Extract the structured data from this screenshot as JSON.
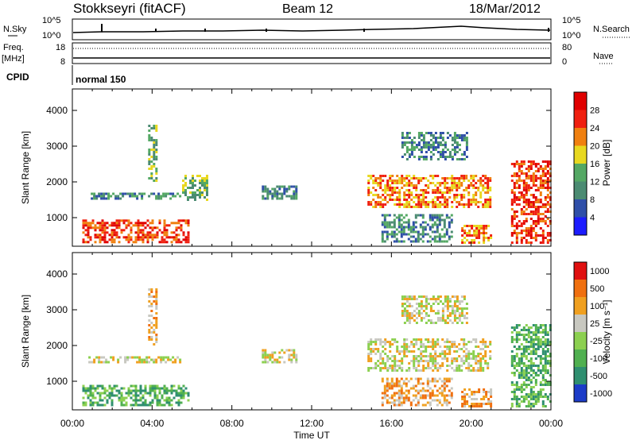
{
  "header": {
    "title": "Stokkseyri (fitACF)",
    "beam": "Beam 12",
    "date": "18/Mar/2012"
  },
  "top_panels": {
    "nsky_label": "N.Sky",
    "nsearch_label": "N.Search",
    "nsky_ticks": [
      "10^5",
      "10^0"
    ],
    "nsearch_ticks": [
      "10^5",
      "10^0"
    ],
    "freq_label": "Freq.",
    "freq_unit": "[MHz]",
    "freq_ticks": [
      "18",
      "8"
    ],
    "nave_label": "Nave",
    "nave_ticks": [
      "80",
      "0"
    ],
    "cpid_label": "CPID",
    "cpid_value": "normal 150"
  },
  "chart_data": [
    {
      "type": "heatmap",
      "name": "power",
      "ylabel": "Slant Range [km]",
      "yticks": [
        "1000",
        "2000",
        "3000",
        "4000"
      ],
      "ylim": [
        200,
        4600
      ],
      "xlim": [
        0,
        24
      ],
      "colorbar": {
        "label": "Power [dB]",
        "ticks": [
          "4",
          "8",
          "12",
          "16",
          "20",
          "24",
          "28"
        ],
        "colors": [
          "#1c1cff",
          "#2f4fa8",
          "#4b8b72",
          "#54a864",
          "#e8d820",
          "#f08010",
          "#f02010",
          "#e00000"
        ]
      },
      "regions": [
        {
          "t0": 0.5,
          "t1": 5.8,
          "r0": 300,
          "r1": 950,
          "level": 6
        },
        {
          "t0": 0.8,
          "t1": 5.4,
          "r0": 1500,
          "r1": 1700,
          "level": 2
        },
        {
          "t0": 3.8,
          "t1": 4.2,
          "r0": 2000,
          "r1": 3600,
          "level": 3
        },
        {
          "t0": 5.5,
          "t1": 6.8,
          "r0": 1500,
          "r1": 2200,
          "level": 3
        },
        {
          "t0": 9.5,
          "t1": 11.2,
          "r0": 1500,
          "r1": 1900,
          "level": 2
        },
        {
          "t0": 14.8,
          "t1": 21.0,
          "r0": 1300,
          "r1": 2200,
          "level": 5
        },
        {
          "t0": 16.5,
          "t1": 19.8,
          "r0": 2600,
          "r1": 3400,
          "level": 2
        },
        {
          "t0": 15.5,
          "t1": 19.0,
          "r0": 300,
          "r1": 1100,
          "level": 2
        },
        {
          "t0": 19.5,
          "t1": 21.0,
          "r0": 300,
          "r1": 800,
          "level": 5
        },
        {
          "t0": 22.0,
          "t1": 24.0,
          "r0": 300,
          "r1": 2600,
          "level": 6
        }
      ]
    },
    {
      "type": "heatmap",
      "name": "velocity",
      "ylabel": "Slant Range [km]",
      "yticks": [
        "1000",
        "2000",
        "3000",
        "4000"
      ],
      "ylim": [
        200,
        4600
      ],
      "xlim": [
        0,
        24
      ],
      "xticks": [
        "00:00",
        "04:00",
        "08:00",
        "12:00",
        "16:00",
        "20:00",
        "00:00"
      ],
      "xlabel": "Time UT",
      "colorbar": {
        "label": "Velocity [m s⁻¹]",
        "ticks": [
          "1000",
          "500",
          "100",
          "25",
          "-25",
          "-100",
          "-500",
          "-1000"
        ],
        "colors": [
          "#1c3cc8",
          "#2f8f70",
          "#50b050",
          "#8cd050",
          "#c8c8c0",
          "#f0a020",
          "#f07010",
          "#e01010"
        ]
      },
      "regions": [
        {
          "t0": 0.5,
          "t1": 5.8,
          "r0": 300,
          "r1": 900,
          "level": 2
        },
        {
          "t0": 0.8,
          "t1": 5.4,
          "r0": 1500,
          "r1": 1700,
          "level": 4
        },
        {
          "t0": 3.8,
          "t1": 4.2,
          "r0": 2000,
          "r1": 3600,
          "level": 5
        },
        {
          "t0": 9.5,
          "t1": 11.2,
          "r0": 1500,
          "r1": 1900,
          "level": 4
        },
        {
          "t0": 14.8,
          "t1": 21.0,
          "r0": 1300,
          "r1": 2200,
          "level": 4
        },
        {
          "t0": 16.5,
          "t1": 19.8,
          "r0": 2600,
          "r1": 3400,
          "level": 4
        },
        {
          "t0": 15.5,
          "t1": 19.0,
          "r0": 300,
          "r1": 1100,
          "level": 5
        },
        {
          "t0": 19.5,
          "t1": 21.0,
          "r0": 300,
          "r1": 800,
          "level": 5
        },
        {
          "t0": 22.0,
          "t1": 24.0,
          "r0": 300,
          "r1": 2600,
          "level": 2
        }
      ]
    }
  ]
}
